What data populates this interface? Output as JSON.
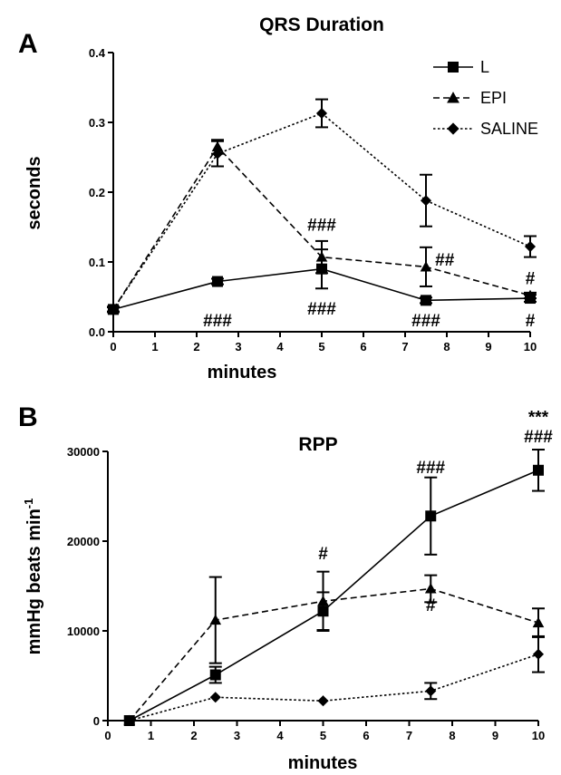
{
  "chart_data": [
    {
      "panel": "A",
      "type": "line",
      "title": "QRS Duration",
      "xlabel": "minutes",
      "ylabel": "seconds",
      "xlim": [
        0,
        10
      ],
      "ylim": [
        0,
        0.4
      ],
      "xticks": [
        0,
        1,
        2,
        3,
        4,
        5,
        6,
        7,
        8,
        9,
        10
      ],
      "xtick_labels": [
        "0",
        "1",
        "2",
        "3",
        "4",
        "5",
        "6",
        "7",
        "8",
        "9",
        "10"
      ],
      "yticks": [
        0,
        0.1,
        0.2,
        0.3,
        0.4
      ],
      "ytick_labels": [
        "0.0",
        "0.1",
        "0.2",
        "0.3",
        "0.4"
      ],
      "legend": "top-right",
      "series": [
        {
          "name": "L",
          "marker": "square",
          "dash": "solid",
          "x": [
            0,
            2.5,
            5,
            7.5,
            10
          ],
          "y": [
            0.032,
            0.072,
            0.09,
            0.045,
            0.048
          ],
          "err": [
            0.004,
            0.004,
            0.028,
            0.004,
            0.005
          ]
        },
        {
          "name": "EPI",
          "marker": "triangle",
          "dash": "dashed",
          "x": [
            0,
            2.5,
            5,
            7.5,
            10
          ],
          "y": [
            0.032,
            0.265,
            0.107,
            0.093,
            0.052
          ],
          "err": [
            0.003,
            0.01,
            0.023,
            0.028,
            0.004
          ]
        },
        {
          "name": "SALINE",
          "marker": "diamond",
          "dash": "dotted",
          "x": [
            0,
            2.5,
            5,
            7.5,
            10
          ],
          "y": [
            0.032,
            0.255,
            0.313,
            0.188,
            0.122
          ],
          "err": [
            0.003,
            0.018,
            0.02,
            0.037,
            0.015
          ]
        }
      ],
      "annotations": [
        {
          "text": "###",
          "x": 2.5,
          "y": 0.008
        },
        {
          "text": "###",
          "x": 5,
          "y": 0.145
        },
        {
          "text": "###",
          "x": 5,
          "y": 0.025
        },
        {
          "text": "##",
          "x": 7.95,
          "y": 0.095
        },
        {
          "text": "###",
          "x": 7.5,
          "y": 0.008
        },
        {
          "text": "#",
          "x": 10,
          "y": 0.068
        },
        {
          "text": "#",
          "x": 10,
          "y": 0.008
        }
      ]
    },
    {
      "panel": "B",
      "type": "line",
      "title": "RPP",
      "xlabel": "minutes",
      "ylabel": "mmHg beats min",
      "ylabel_sup": "-1",
      "xlim": [
        0,
        10
      ],
      "ylim": [
        0,
        30000
      ],
      "xticks": [
        0,
        1,
        2,
        3,
        4,
        5,
        6,
        7,
        8,
        9,
        10
      ],
      "xtick_labels": [
        "0",
        "1",
        "2",
        "3",
        "4",
        "5",
        "6",
        "7",
        "8",
        "9",
        "10"
      ],
      "yticks": [
        0,
        10000,
        20000,
        30000
      ],
      "ytick_labels": [
        "0",
        "10000",
        "20000",
        "30000"
      ],
      "series": [
        {
          "name": "L",
          "marker": "square",
          "dash": "solid",
          "x": [
            0.5,
            2.5,
            5,
            7.5,
            10
          ],
          "y": [
            0,
            5100,
            12200,
            22800,
            27900
          ],
          "err": [
            0,
            900,
            2100,
            4300,
            2300
          ]
        },
        {
          "name": "EPI",
          "marker": "triangle",
          "dash": "dashed",
          "x": [
            0.5,
            2.5,
            5,
            7.5,
            10
          ],
          "y": [
            0,
            11200,
            13300,
            14700,
            10900
          ],
          "err": [
            0,
            4800,
            3300,
            1500,
            1600
          ]
        },
        {
          "name": "SALINE",
          "marker": "diamond",
          "dash": "dotted",
          "x": [
            0.5,
            2.5,
            5,
            7.5,
            10
          ],
          "y": [
            0,
            2600,
            2200,
            3300,
            7400
          ],
          "err": [
            0,
            0,
            0,
            900,
            2000
          ]
        }
      ],
      "annotations": [
        {
          "text": "#",
          "x": 5,
          "y": 18000
        },
        {
          "text": "###",
          "x": 7.5,
          "y": 27600
        },
        {
          "text": "#",
          "x": 7.5,
          "y": 12200
        },
        {
          "text": "###",
          "x": 10,
          "y": 31000
        },
        {
          "text": "***",
          "x": 10,
          "y": 33200
        }
      ]
    }
  ],
  "panels": [
    {
      "letter": "A"
    },
    {
      "letter": "B"
    }
  ],
  "colors": {
    "ink": "#000000",
    "background": "#ffffff"
  }
}
